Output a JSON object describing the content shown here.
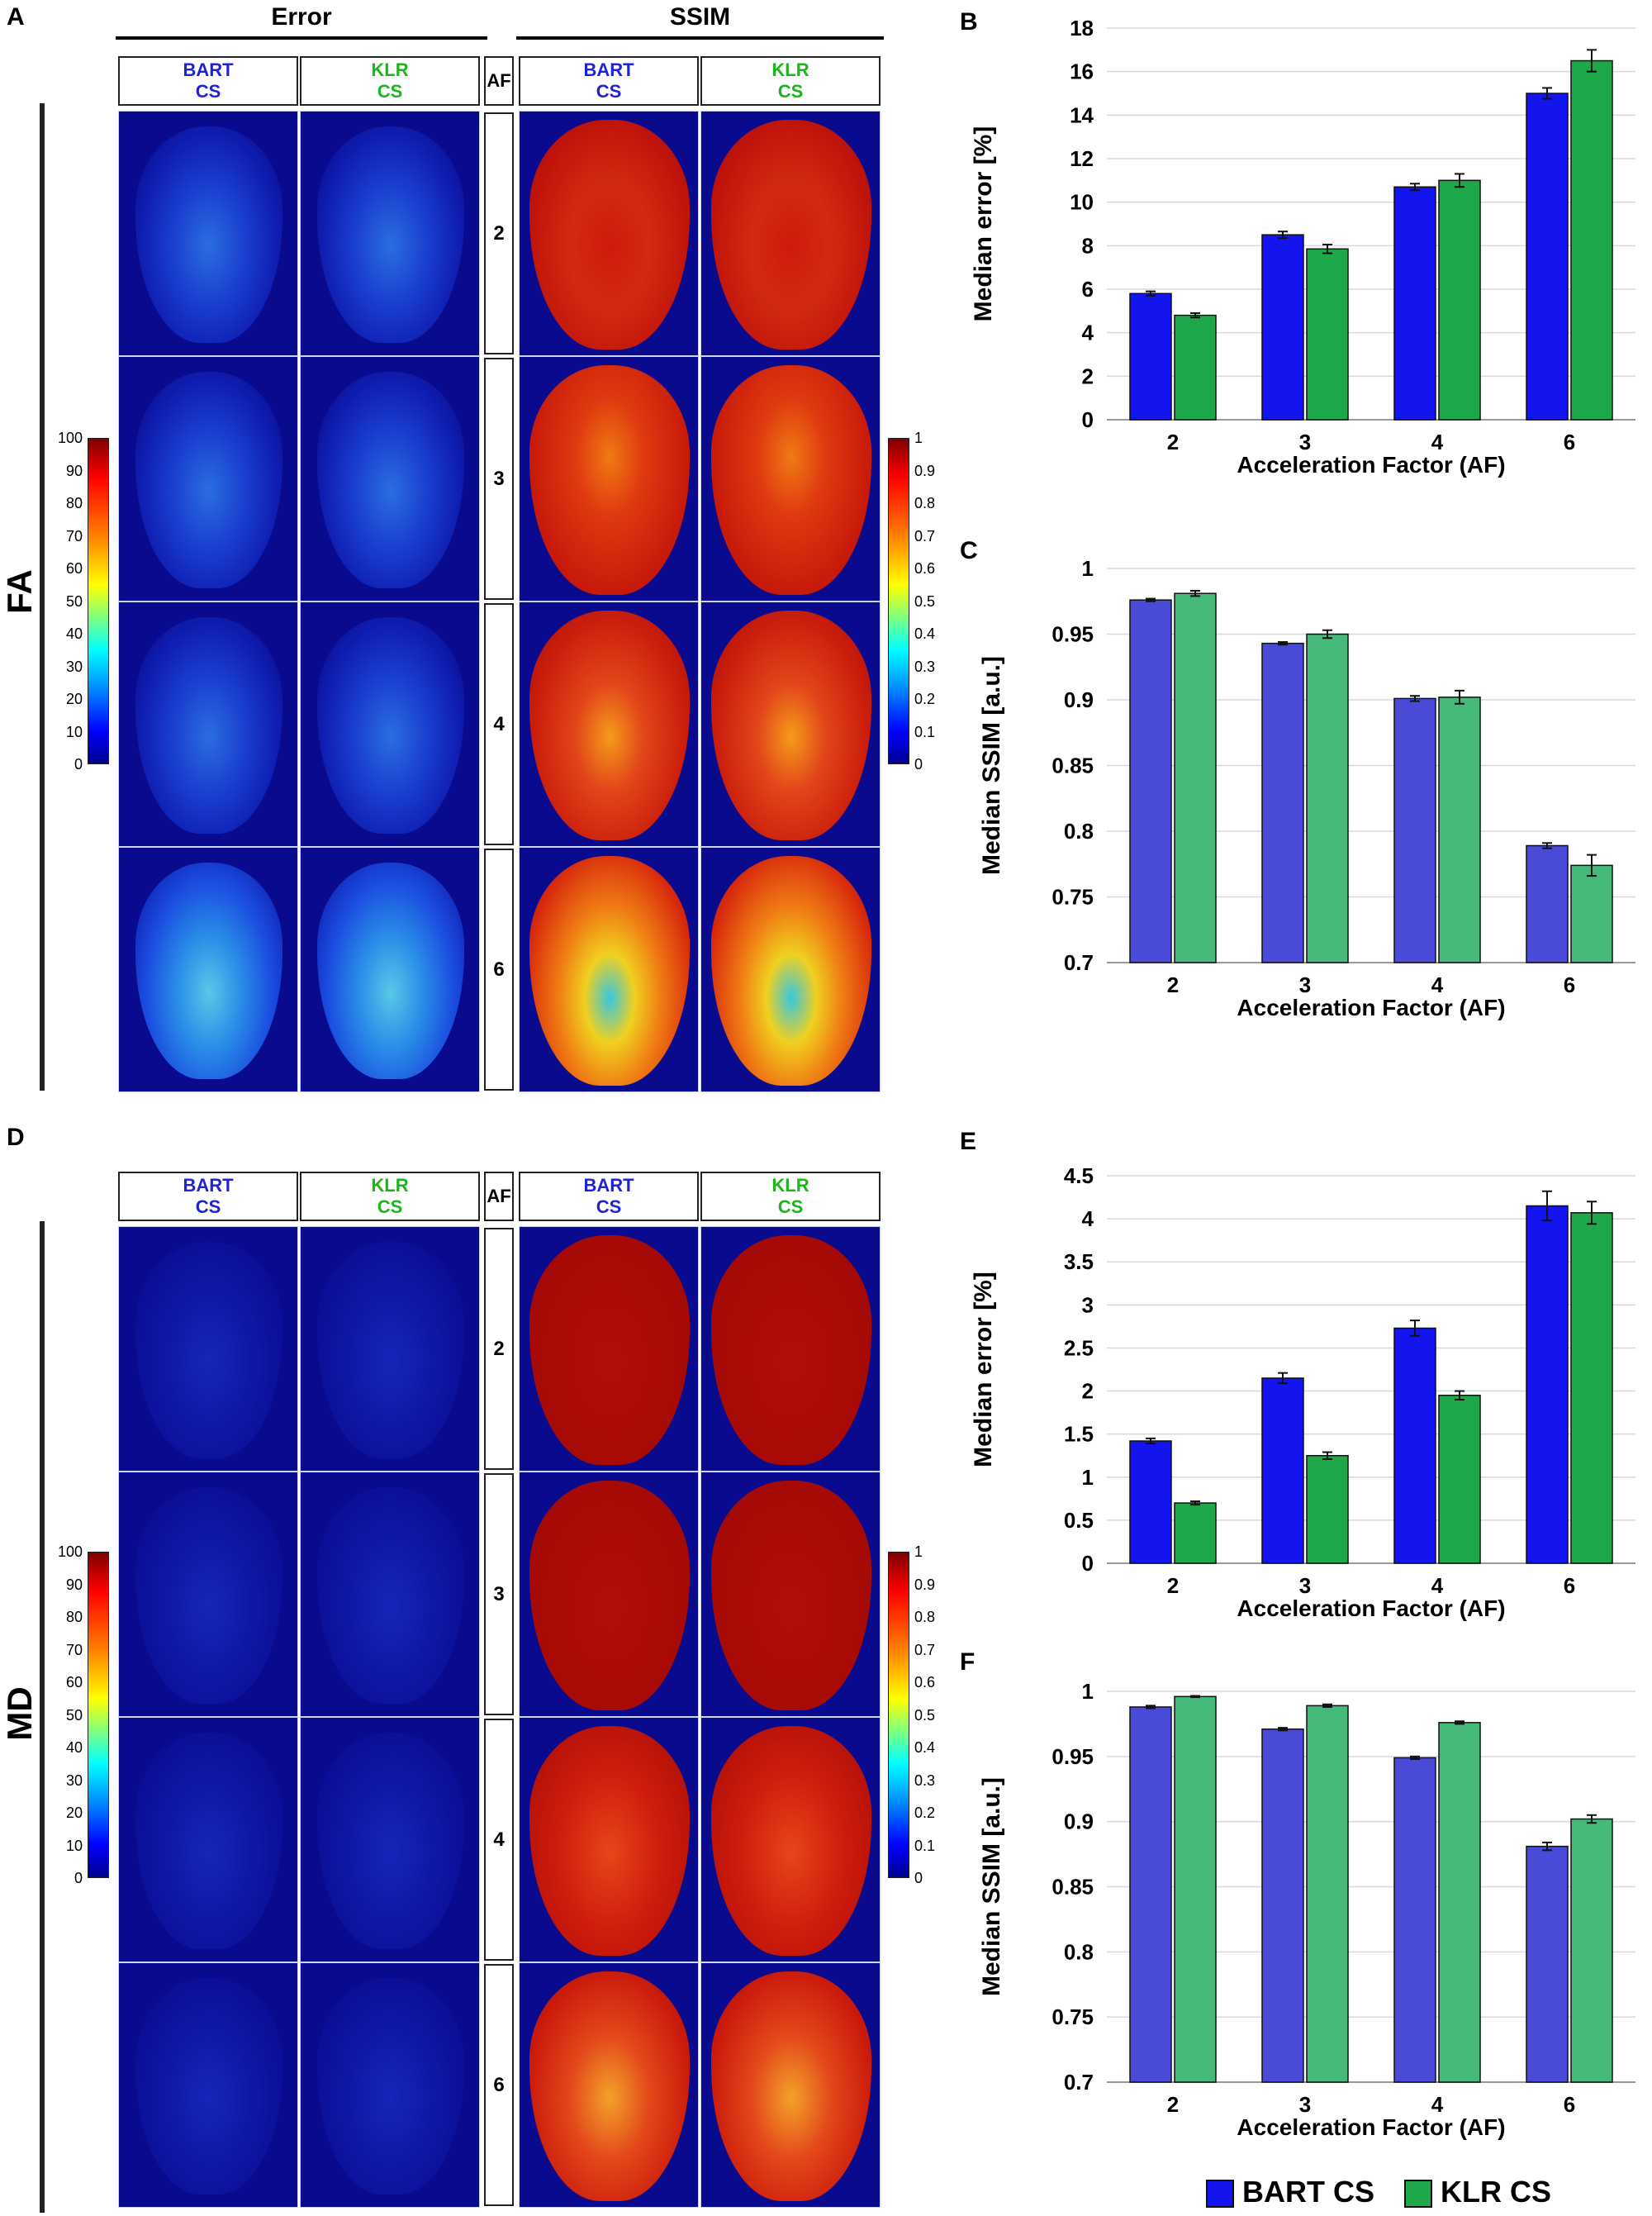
{
  "panels": {
    "A": "A",
    "B": "B",
    "C": "C",
    "D": "D",
    "E": "E",
    "F": "F"
  },
  "figure": {
    "error_header": "Error",
    "ssim_header": "SSIM",
    "af_header": "AF",
    "fa_label": "FA",
    "md_label": "MD",
    "method1_line1": "BART",
    "method1_line2": "CS",
    "method2_line1": "KLR",
    "method2_line2": "CS",
    "af_values": [
      "2",
      "3",
      "4",
      "6"
    ],
    "error_colorbar_ticks": [
      "100",
      "90",
      "80",
      "70",
      "60",
      "50",
      "40",
      "30",
      "20",
      "10",
      "0"
    ],
    "ssim_colorbar_ticks": [
      "1",
      "0.9",
      "0.8",
      "0.7",
      "0.6",
      "0.5",
      "0.4",
      "0.3",
      "0.2",
      "0.1",
      "0"
    ],
    "colors": {
      "bart": "#1414ee",
      "klr": "#1fa84a",
      "bart_ssim": "#4a4ad8",
      "klr_ssim": "#45b97a"
    }
  },
  "legend": {
    "bart": "BART CS",
    "klr": "KLR CS"
  },
  "chart_data": [
    {
      "panel": "B",
      "type": "bar",
      "title": "",
      "categories": [
        "2",
        "3",
        "4",
        "6"
      ],
      "series": [
        {
          "name": "BART CS",
          "values": [
            5.8,
            8.5,
            10.7,
            15.0
          ],
          "errors": [
            0.1,
            0.15,
            0.15,
            0.25
          ]
        },
        {
          "name": "KLR CS",
          "values": [
            4.8,
            7.85,
            11.0,
            16.5
          ],
          "errors": [
            0.1,
            0.2,
            0.3,
            0.5
          ]
        }
      ],
      "xlabel": "Acceleration Factor (AF)",
      "ylabel": "Median error [%]",
      "ylim": [
        0,
        18
      ],
      "yticks": [
        "0",
        "2",
        "4",
        "6",
        "8",
        "10",
        "12",
        "14",
        "16",
        "18"
      ],
      "grid": true
    },
    {
      "panel": "C",
      "type": "bar",
      "title": "",
      "categories": [
        "2",
        "3",
        "4",
        "6"
      ],
      "series": [
        {
          "name": "BART CS",
          "values": [
            0.976,
            0.943,
            0.901,
            0.789
          ],
          "errors": [
            0.001,
            0.001,
            0.002,
            0.002
          ]
        },
        {
          "name": "KLR CS",
          "values": [
            0.981,
            0.95,
            0.902,
            0.774
          ],
          "errors": [
            0.002,
            0.003,
            0.005,
            0.008
          ]
        }
      ],
      "xlabel": "Acceleration Factor (AF)",
      "ylabel": "Median SSIM [a.u.]",
      "ylim": [
        0.7,
        1.0
      ],
      "yticks": [
        "0.7",
        "0.75",
        "0.8",
        "0.85",
        "0.9",
        "0.95",
        "1"
      ],
      "grid": true
    },
    {
      "panel": "E",
      "type": "bar",
      "title": "",
      "categories": [
        "2",
        "3",
        "4",
        "6"
      ],
      "series": [
        {
          "name": "BART CS",
          "values": [
            1.42,
            2.15,
            2.73,
            4.15
          ],
          "errors": [
            0.03,
            0.06,
            0.09,
            0.17
          ]
        },
        {
          "name": "KLR CS",
          "values": [
            0.7,
            1.25,
            1.95,
            4.07
          ],
          "errors": [
            0.02,
            0.04,
            0.05,
            0.13
          ]
        }
      ],
      "xlabel": "Acceleration Factor (AF)",
      "ylabel": "Median error [%]",
      "ylim": [
        0,
        4.5
      ],
      "yticks": [
        "0",
        "0.5",
        "1",
        "1.5",
        "2",
        "2.5",
        "3",
        "3.5",
        "4",
        "4.5"
      ],
      "grid": true
    },
    {
      "panel": "F",
      "type": "bar",
      "title": "",
      "categories": [
        "2",
        "3",
        "4",
        "6"
      ],
      "series": [
        {
          "name": "BART CS",
          "values": [
            0.988,
            0.971,
            0.949,
            0.881
          ],
          "errors": [
            0.001,
            0.001,
            0.001,
            0.003
          ]
        },
        {
          "name": "KLR CS",
          "values": [
            0.996,
            0.989,
            0.976,
            0.902
          ],
          "errors": [
            0.0005,
            0.001,
            0.001,
            0.003
          ]
        }
      ],
      "xlabel": "Acceleration Factor (AF)",
      "ylabel": "Median SSIM [a.u.]",
      "ylim": [
        0.7,
        1.0
      ],
      "yticks": [
        "0.7",
        "0.75",
        "0.8",
        "0.85",
        "0.9",
        "0.95",
        "1"
      ],
      "grid": true
    }
  ]
}
